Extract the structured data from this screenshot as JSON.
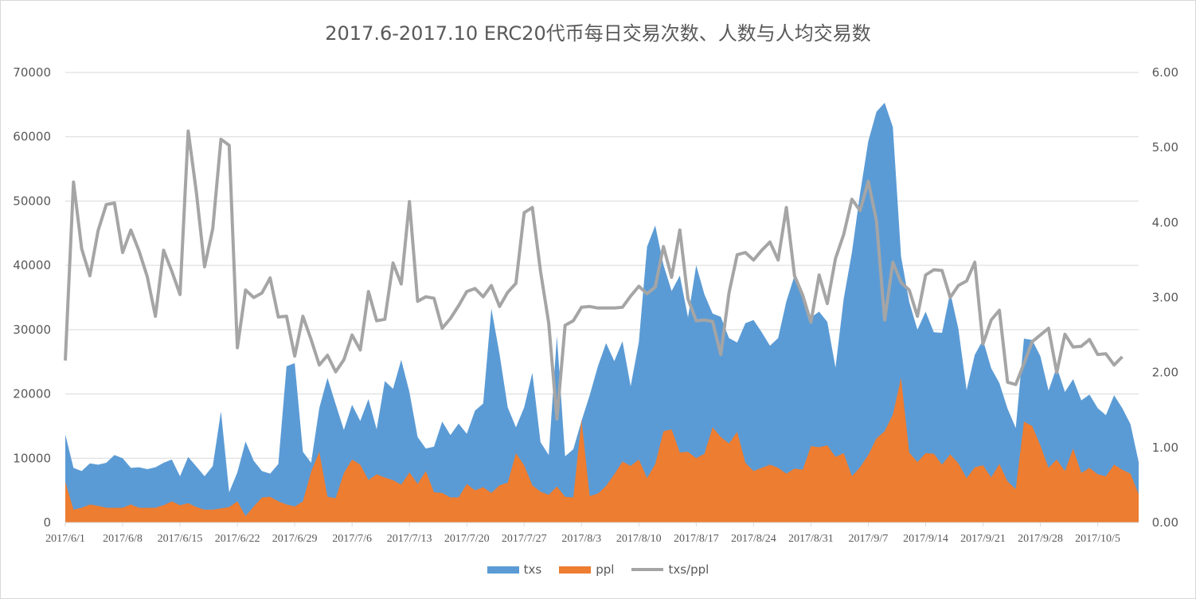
{
  "chart_data": {
    "type": "area",
    "title": "2017.6-2017.10 ERC20代币每日交易次数、人数与人均交易数",
    "x_tick_labels": [
      "2017/6/1",
      "2017/6/8",
      "2017/6/15",
      "2017/6/22",
      "2017/6/29",
      "2017/7/6",
      "2017/7/13",
      "2017/7/20",
      "2017/7/27",
      "2017/8/3",
      "2017/8/10",
      "2017/8/17",
      "2017/8/24",
      "2017/8/31",
      "2017/9/7",
      "2017/9/14",
      "2017/9/21",
      "2017/9/28",
      "2017/10/5"
    ],
    "y_left": {
      "ylim": [
        0,
        70000
      ],
      "ticks": [
        "0",
        "10000",
        "20000",
        "30000",
        "40000",
        "50000",
        "60000",
        "70000"
      ]
    },
    "y_right": {
      "ylim": [
        0,
        6
      ],
      "ticks": [
        "0.00",
        "1.00",
        "2.00",
        "3.00",
        "4.00",
        "5.00",
        "6.00"
      ]
    },
    "grid": true,
    "legend_position": "bottom",
    "series": [
      {
        "name": "txs",
        "type": "area",
        "color": "#5b9bd5",
        "values": [
          13700,
          8500,
          8000,
          9200,
          9000,
          9300,
          10500,
          10000,
          8500,
          8600,
          8300,
          8600,
          9300,
          9800,
          7200,
          10200,
          8700,
          7200,
          8800,
          17300,
          4700,
          7800,
          12600,
          9600,
          8000,
          7600,
          9100,
          24300,
          24800,
          11000,
          9300,
          17800,
          22500,
          18400,
          14400,
          18300,
          15800,
          19200,
          14500,
          22000,
          20800,
          25300,
          20300,
          13300,
          11500,
          11800,
          15700,
          13600,
          15400,
          13800,
          17400,
          18500,
          33300,
          26200,
          17900,
          14800,
          17900,
          23300,
          12500,
          10500,
          29000,
          10300,
          11400,
          15800,
          19800,
          24300,
          27900,
          25100,
          28200,
          21200,
          28100,
          42900,
          46200,
          40100,
          36000,
          38400,
          31900,
          40000,
          35500,
          32500,
          32000,
          28700,
          28000,
          31000,
          31500,
          29600,
          27500,
          28700,
          34400,
          38400,
          35800,
          31900,
          32800,
          31200,
          24100,
          34800,
          42000,
          51200,
          59300,
          63900,
          65300,
          61500,
          41400,
          34300,
          30000,
          32800,
          29600,
          29500,
          35800,
          30100,
          20600,
          26100,
          28400,
          24000,
          21700,
          17700,
          14700,
          28600,
          28400,
          25900,
          20500,
          24200,
          20300,
          22300,
          19000,
          19900,
          17800,
          16700,
          19800,
          17800,
          15300,
          9400
        ]
      },
      {
        "name": "ppl",
        "type": "area",
        "color": "#ed7d31",
        "values": [
          6350,
          2000,
          2300,
          2800,
          2600,
          2300,
          2300,
          2300,
          2800,
          2300,
          2300,
          2300,
          2700,
          3300,
          2700,
          3000,
          2400,
          2000,
          2000,
          2200,
          2400,
          3300,
          1000,
          2500,
          3900,
          4000,
          3300,
          2800,
          2500,
          3300,
          7900,
          11000,
          4000,
          3800,
          7700,
          9800,
          9000,
          6600,
          7500,
          7000,
          6600,
          5900,
          7800,
          6000,
          8000,
          4700,
          4600,
          3900,
          3900,
          6000,
          5000,
          5500,
          4600,
          5800,
          6200,
          10800,
          8900,
          5800,
          4800,
          4300,
          5600,
          4000,
          3900,
          16000,
          4100,
          4500,
          5700,
          7500,
          9500,
          8800,
          9800,
          6900,
          9100,
          14200,
          14500,
          10900,
          11000,
          10000,
          10700,
          14800,
          13300,
          12300,
          14100,
          9300,
          8000,
          8500,
          9000,
          8500,
          7600,
          8400,
          8200,
          11900,
          11700,
          12000,
          10200,
          10800,
          7200,
          8600,
          10500,
          13100,
          14200,
          16800,
          22500,
          10900,
          9400,
          10800,
          10700,
          9000,
          10600,
          9200,
          6900,
          8600,
          8900,
          7000,
          9100,
          6400,
          5200,
          15700,
          15000,
          12000,
          8500,
          9800,
          8000,
          11500,
          7700,
          8500,
          7500,
          7200,
          9000,
          8200,
          7600,
          4400
        ]
      },
      {
        "name": "txs/ppl",
        "type": "line",
        "color": "#a5a5a5",
        "axis": "right",
        "values": [
          2.16,
          4.54,
          3.65,
          3.29,
          3.89,
          4.24,
          4.26,
          3.6,
          3.9,
          3.62,
          3.28,
          2.75,
          3.63,
          3.35,
          3.04,
          5.22,
          4.4,
          3.41,
          3.92,
          5.11,
          5.03,
          2.33,
          3.1,
          3.0,
          3.06,
          3.26,
          2.74,
          2.75,
          2.22,
          2.75,
          2.44,
          2.1,
          2.23,
          2.01,
          2.17,
          2.5,
          2.3,
          3.08,
          2.69,
          2.71,
          3.46,
          3.18,
          4.28,
          2.95,
          3.01,
          2.99,
          2.59,
          2.72,
          2.89,
          3.08,
          3.12,
          3.01,
          3.16,
          2.88,
          3.07,
          3.19,
          4.13,
          4.2,
          3.35,
          2.66,
          1.38,
          2.63,
          2.69,
          2.87,
          2.88,
          2.86,
          2.86,
          2.86,
          2.87,
          3.02,
          3.15,
          3.05,
          3.14,
          3.68,
          3.27,
          3.9,
          2.98,
          2.69,
          2.7,
          2.68,
          2.24,
          3.06,
          3.57,
          3.6,
          3.5,
          3.63,
          3.74,
          3.5,
          4.2,
          3.29,
          3.03,
          2.67,
          3.3,
          2.92,
          3.52,
          3.84,
          4.31,
          4.16,
          4.55,
          4.02,
          2.7,
          3.47,
          3.2,
          3.1,
          2.75,
          3.3,
          3.37,
          3.36,
          3.0,
          3.16,
          3.22,
          3.47,
          2.38,
          2.7,
          2.83,
          1.87,
          1.84,
          2.12,
          2.41,
          2.5,
          2.59,
          2.0,
          2.51,
          2.34,
          2.35,
          2.44,
          2.24,
          2.25,
          2.1,
          2.21
        ]
      }
    ]
  }
}
